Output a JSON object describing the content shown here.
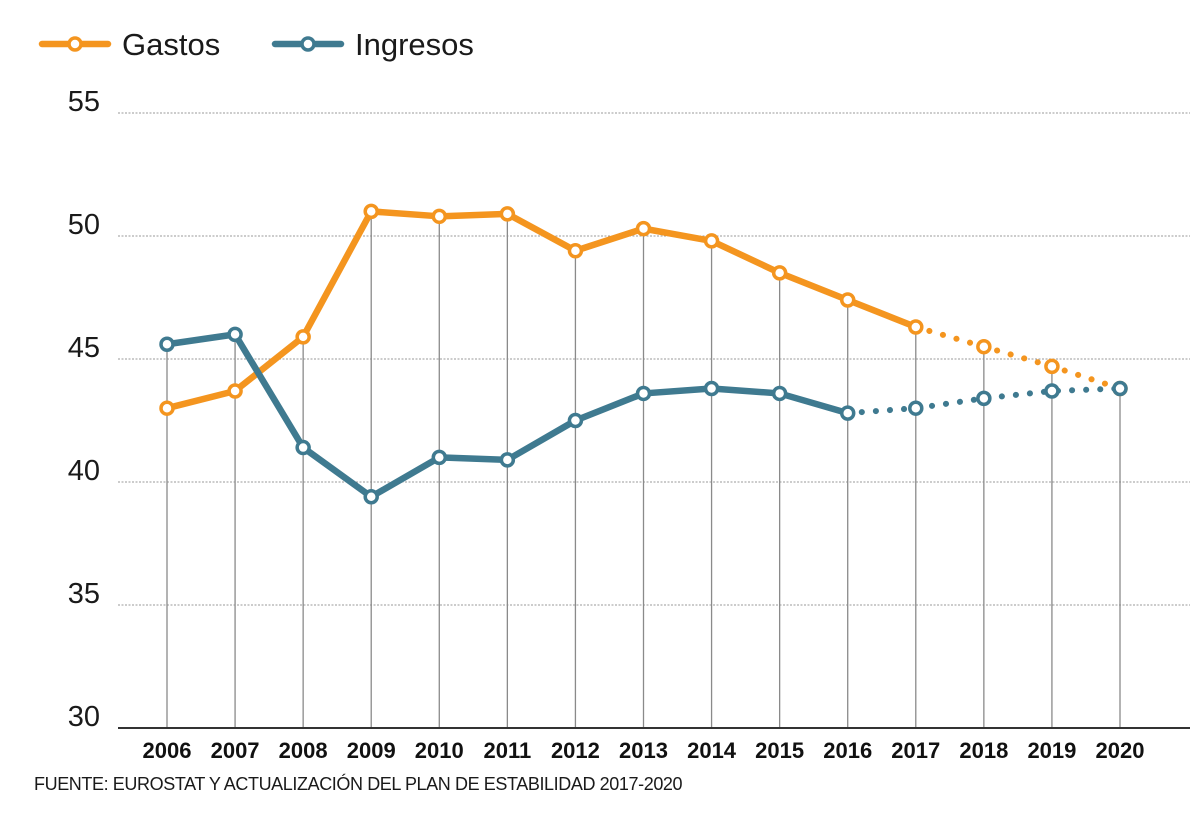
{
  "chart_data": {
    "type": "line",
    "categories": [
      "2006",
      "2007",
      "2008",
      "2009",
      "2010",
      "2011",
      "2012",
      "2013",
      "2014",
      "2015",
      "2016",
      "2017",
      "2018",
      "2019",
      "2020"
    ],
    "series": [
      {
        "name": "Gastos",
        "color": "#f4951f",
        "values": [
          43.0,
          43.7,
          45.9,
          51.0,
          50.8,
          50.9,
          49.4,
          50.3,
          49.8,
          48.5,
          47.4,
          46.3,
          45.5,
          44.7,
          43.8
        ],
        "projected_from": "2017"
      },
      {
        "name": "Ingresos",
        "color": "#3f7a90",
        "values": [
          45.6,
          46.0,
          41.4,
          39.4,
          41.0,
          40.9,
          42.5,
          43.6,
          43.8,
          43.6,
          42.8,
          43.0,
          43.4,
          43.7,
          43.8
        ],
        "projected_from": "2016"
      }
    ],
    "y_ticks": [
      "55",
      "50",
      "45",
      "40",
      "35",
      "30"
    ],
    "ylim": [
      30,
      55
    ],
    "grid": true,
    "legend_position": "top-left",
    "source": "FUENTE: EUROSTAT Y ACTUALIZACIÓN DEL PLAN DE ESTABILIDAD 2017-2020"
  }
}
